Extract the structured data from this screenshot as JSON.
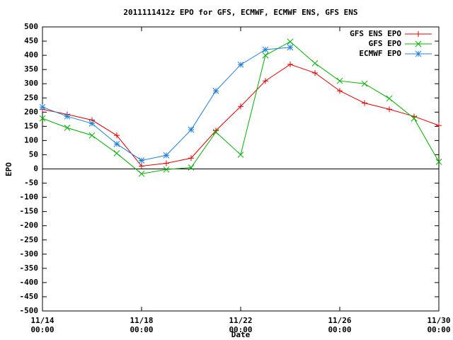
{
  "chart_data": {
    "type": "line",
    "title": "2011111412z EPO for GFS, ECMWF, ECMWF ENS, GFS ENS",
    "x_label": "Date",
    "y_label": "EPO",
    "x": [
      14,
      15,
      16,
      17,
      18,
      19,
      20,
      21,
      22,
      23,
      24,
      25,
      26,
      27,
      28,
      29,
      30
    ],
    "xlim": [
      14,
      30
    ],
    "xticks": [
      {
        "value": 14,
        "label": "11/14 00:00"
      },
      {
        "value": 18,
        "label": "11/18 00:00"
      },
      {
        "value": 22,
        "label": "11/22 00:00"
      },
      {
        "value": 26,
        "label": "11/26 00:00"
      },
      {
        "value": 30,
        "label": "11/30 00:00"
      }
    ],
    "ylim": [
      -500,
      500
    ],
    "yticks": [
      -500,
      -450,
      -400,
      -350,
      -300,
      -250,
      -200,
      -150,
      -100,
      -50,
      0,
      50,
      100,
      150,
      200,
      250,
      300,
      350,
      400,
      450,
      500
    ],
    "zero_line": true,
    "legend": "top-right",
    "series": [
      {
        "name": "GFS ENS EPO",
        "color": "#e00000",
        "marker": "plus",
        "values": [
          210,
          192,
          172,
          118,
          10,
          20,
          38,
          135,
          220,
          310,
          368,
          338,
          275,
          232,
          210,
          185,
          153
        ]
      },
      {
        "name": "GFS EPO",
        "color": "#00b000",
        "marker": "cross",
        "values": [
          178,
          145,
          118,
          55,
          -17,
          -2,
          5,
          130,
          50,
          400,
          448,
          372,
          310,
          300,
          248,
          178,
          25
        ]
      },
      {
        "name": "ECMWF EPO",
        "color": "#1f7fd8",
        "marker": "star",
        "values": [
          218,
          185,
          160,
          88,
          30,
          48,
          138,
          275,
          367,
          420,
          428,
          null,
          null,
          null,
          null,
          null,
          null
        ]
      }
    ]
  }
}
